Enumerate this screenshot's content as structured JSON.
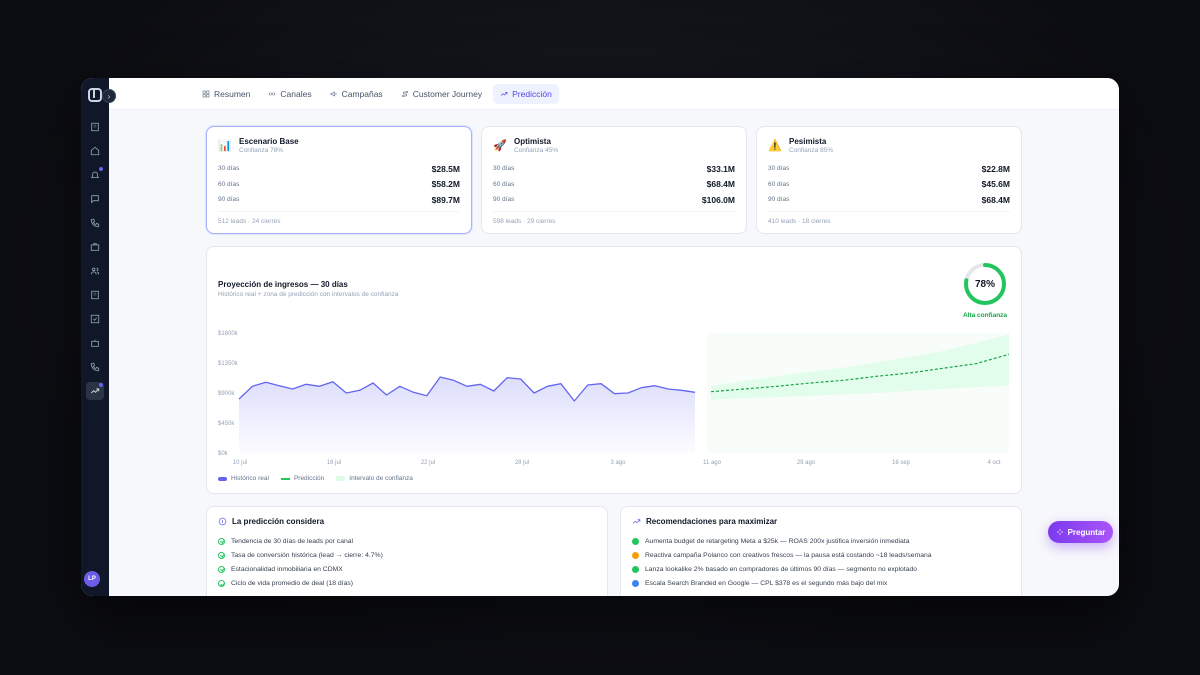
{
  "tabs": [
    {
      "label": "Resumen",
      "icon": "grid-icon"
    },
    {
      "label": "Canales",
      "icon": "broadcast-icon"
    },
    {
      "label": "Campañas",
      "icon": "megaphone-icon"
    },
    {
      "label": "Customer Journey",
      "icon": "route-icon"
    },
    {
      "label": "Predicción",
      "icon": "trending-up-icon",
      "active": true
    }
  ],
  "sidebar": {
    "avatar_initials": "LP",
    "items": [
      "building-icon",
      "home-icon",
      "bell-icon",
      "message-icon",
      "phone-icon",
      "briefcase-icon",
      "users-icon",
      "building-icon",
      "check-square-icon",
      "bot-icon",
      "phone-icon",
      "trending-up-icon"
    ]
  },
  "scenarios": [
    {
      "icon": "📊",
      "title": "Escenario Base",
      "confidence": "Confianza 78%",
      "rows": [
        {
          "label": "30 días",
          "value": "$28.5M"
        },
        {
          "label": "60 días",
          "value": "$58.2M"
        },
        {
          "label": "90 días",
          "value": "$89.7M"
        }
      ],
      "footer": "512 leads · 24 cierres"
    },
    {
      "icon": "🚀",
      "title": "Optimista",
      "confidence": "Confianza 45%",
      "rows": [
        {
          "label": "30 días",
          "value": "$33.1M"
        },
        {
          "label": "60 días",
          "value": "$68.4M"
        },
        {
          "label": "90 días",
          "value": "$106.0M"
        }
      ],
      "footer": "598 leads · 29 cierres"
    },
    {
      "icon": "⚠️",
      "title": "Pesimista",
      "confidence": "Confianza 85%",
      "rows": [
        {
          "label": "30 días",
          "value": "$22.8M"
        },
        {
          "label": "60 días",
          "value": "$45.6M"
        },
        {
          "label": "90 días",
          "value": "$68.4M"
        }
      ],
      "footer": "410 leads · 18 cierres"
    }
  ],
  "chart_panel": {
    "title": "Proyección de ingresos — 30 días",
    "subtitle": "Histórico real + zona de predicción con intervalos de confianza",
    "gauge_value": "78%",
    "gauge_fraction": 0.78,
    "gauge_label": "Alta confianza",
    "legend": [
      "Histórico real",
      "Predicción",
      "Intervalo de confianza"
    ]
  },
  "chart_data": {
    "type": "area",
    "y_ticks": [
      "$0k",
      "$450k",
      "$900k",
      "$1350k",
      "$1800k"
    ],
    "ylim": [
      0,
      1800
    ],
    "x_ticks": [
      "10 jul",
      "16 jul",
      "22 jul",
      "28 jul",
      "3 ago",
      "11 ago",
      "29 ago",
      "16 sep",
      "4 oct"
    ],
    "series": [
      {
        "name": "Histórico real",
        "values": [
          810,
          1000,
          1060,
          1010,
          960,
          1030,
          1000,
          1070,
          900,
          940,
          1050,
          870,
          1000,
          910,
          860,
          1140,
          1090,
          1000,
          1030,
          930,
          1130,
          1110,
          900,
          1000,
          1040,
          780,
          1020,
          1040,
          890,
          900,
          980,
          1010,
          960,
          940,
          910
        ]
      },
      {
        "name": "Predicción",
        "values": [
          920,
          960,
          1000,
          1050,
          1090,
          1150,
          1200,
          1270,
          1340,
          1480
        ]
      }
    ],
    "confidence_band": {
      "lower": [
        800,
        820,
        840,
        860,
        880,
        900,
        930,
        960,
        990,
        1010
      ],
      "upper": [
        1000,
        1080,
        1150,
        1220,
        1280,
        1360,
        1440,
        1530,
        1650,
        1780
      ]
    }
  },
  "considers": {
    "title": "La predicción considera",
    "items": [
      "Tendencia de 30 días de leads por canal",
      "Tasa de conversión histórica (lead → cierre: 4.7%)",
      "Estacionalidad inmobiliaria en CDMX",
      "Ciclo de vida promedio de deal (18 días)"
    ]
  },
  "recommendations": {
    "title": "Recomendaciones para maximizar",
    "items": [
      {
        "text": "Aumenta budget de retargeting Meta a $25k — ROAS 200x justifica inversión inmediata",
        "color": "#22c55e"
      },
      {
        "text": "Reactiva campaña Polanco con creativos frescos — la pausa está costando ~18 leads/semana",
        "color": "#f59e0b"
      },
      {
        "text": "Lanza lookalike 2% basado en compradores de últimos 90 días — segmento no explotado",
        "color": "#22c55e"
      },
      {
        "text": "Escala Search Branded en Google — CPL $378 es el segundo más bajo del mix",
        "color": "#3b82f6"
      }
    ]
  },
  "ask_button": "Preguntar",
  "colors": {
    "accent": "#6366f1",
    "prediction": "#22c55e",
    "confidence": "#dcfce7"
  }
}
